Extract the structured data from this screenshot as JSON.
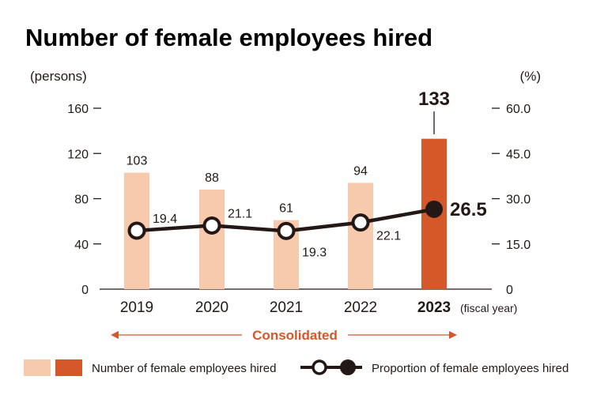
{
  "chart_data": {
    "type": "bar",
    "title": "Number of female employees hired",
    "categories": [
      "2019",
      "2020",
      "2021",
      "2022",
      "2023"
    ],
    "category_suffix": "(fiscal year)",
    "highlight_index": 4,
    "y_left": {
      "unit": "(persons)",
      "min": 0,
      "max": 160,
      "ticks": [
        0,
        40,
        80,
        120,
        160
      ]
    },
    "y_right": {
      "unit": "(%)",
      "min": 0,
      "max": 60,
      "ticks": [
        "0",
        "15.0",
        "30.0",
        "45.0",
        "60.0"
      ]
    },
    "series": [
      {
        "name": "Number of female employees hired",
        "type": "bar",
        "axis": "left",
        "values": [
          103,
          88,
          61,
          94,
          133
        ],
        "labels": [
          "103",
          "88",
          "61",
          "94",
          "133"
        ]
      },
      {
        "name": "Proportion of female employees hired",
        "type": "line",
        "axis": "right",
        "values": [
          19.4,
          21.1,
          19.3,
          22.1,
          26.5
        ],
        "labels": [
          "19.4",
          "21.1",
          "19.3",
          "22.1",
          "26.5"
        ]
      }
    ],
    "annotation": "Consolidated",
    "colors": {
      "bar": "#f7c9ad",
      "bar_highlight": "#d4582a",
      "line": "#231815",
      "accent": "#d4582a"
    },
    "legend_position": "bottom",
    "grid": false
  }
}
